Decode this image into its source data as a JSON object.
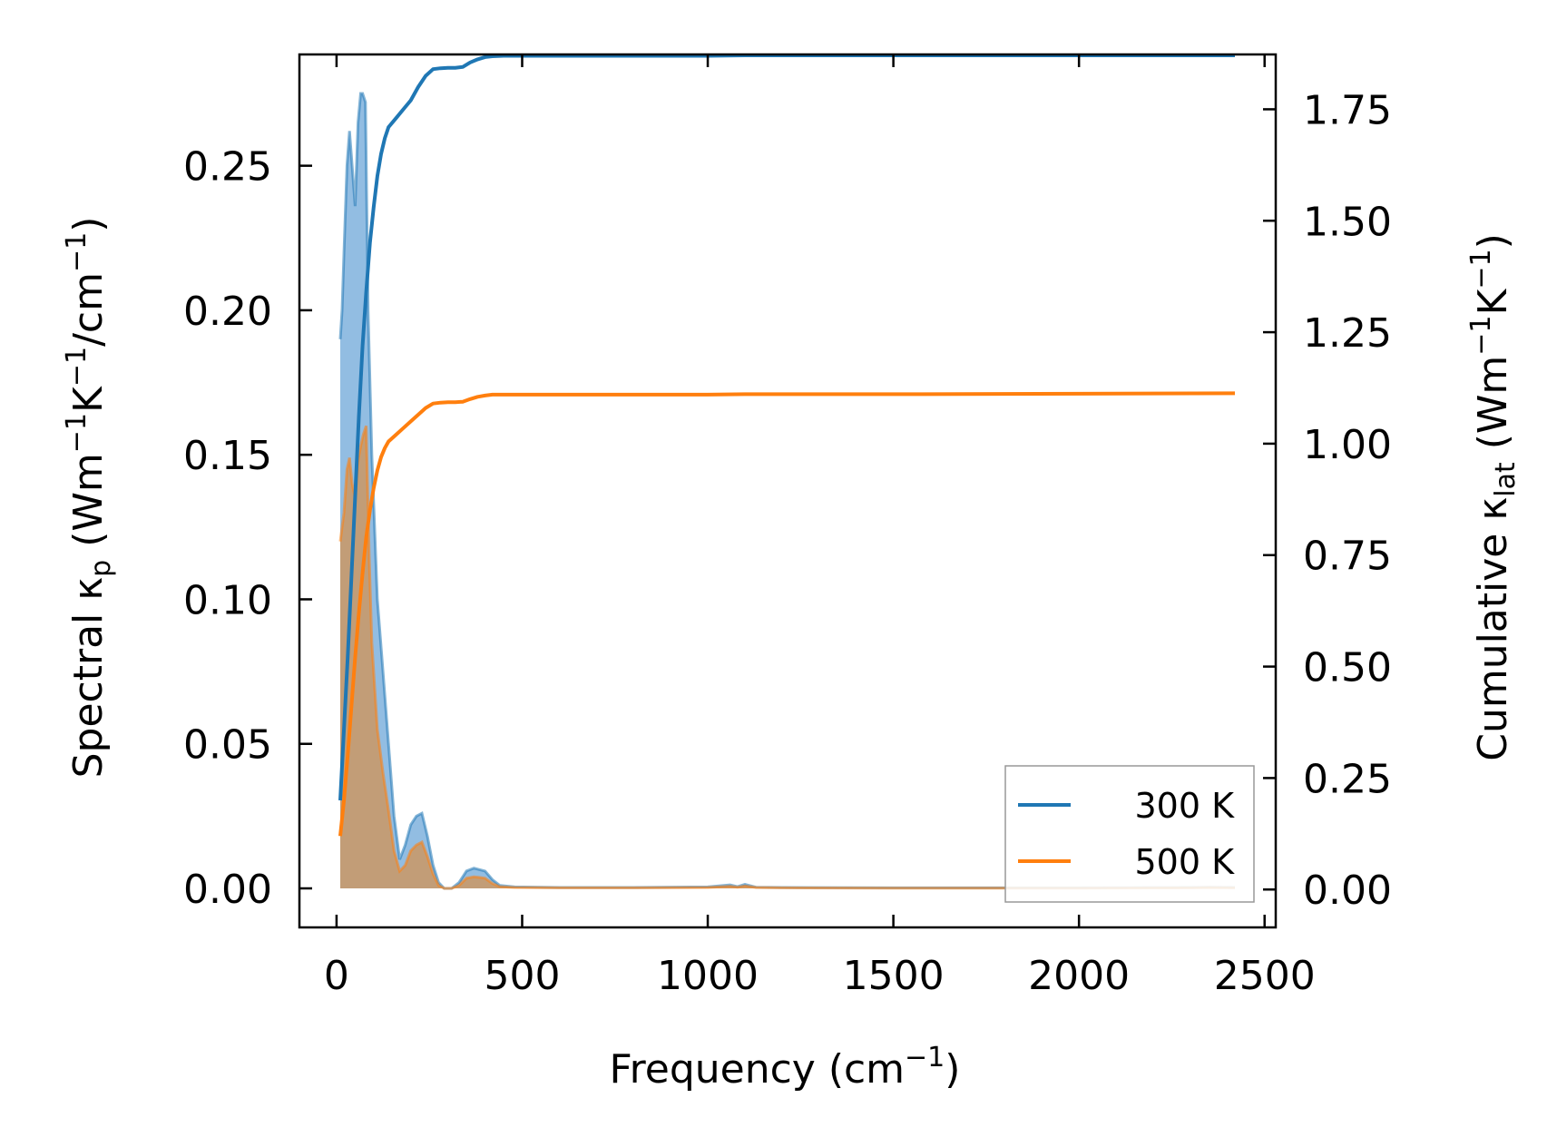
{
  "chart_data": {
    "type": "line",
    "xlabel": {
      "main": "Frequency (cm",
      "sup": "−1",
      "tail": ")"
    },
    "ylabel_left": {
      "a": "Spectral κ",
      "sub": "p",
      "b": " (Wm",
      "sup1": "−1",
      "c": "K",
      "sup2": "−1",
      "d": "/cm",
      "sup3": "−1",
      "e": ")"
    },
    "ylabel_right": {
      "a": "Cumulative κ",
      "sub": "lat",
      "b": " (Wm",
      "sup1": "−1",
      "c": "K",
      "sup2": "−1",
      "e": ")"
    },
    "xlim": [
      -100,
      2530
    ],
    "ylim_left": [
      -0.0135,
      0.2885
    ],
    "ylim_right": [
      -0.085,
      1.873
    ],
    "x_ticks": [
      0,
      500,
      1000,
      1500,
      2000,
      2500
    ],
    "x_tick_labels": [
      "0",
      "500",
      "1000",
      "1500",
      "2000",
      "2500"
    ],
    "y_left_ticks": [
      0.0,
      0.05,
      0.1,
      0.15,
      0.2,
      0.25
    ],
    "y_left_tick_labels": [
      "0.00",
      "0.05",
      "0.10",
      "0.15",
      "0.20",
      "0.25"
    ],
    "y_right_ticks": [
      0.0,
      0.25,
      0.5,
      0.75,
      1.0,
      1.25,
      1.5,
      1.75
    ],
    "y_right_tick_labels": [
      "0.00",
      "0.25",
      "0.50",
      "0.75",
      "1.00",
      "1.25",
      "1.50",
      "1.75"
    ],
    "grid": false,
    "legend_position": "lower-right",
    "colors": {
      "s300": "#1f77b4",
      "s500": "#ff7f0e",
      "fill300": "#7fb2dd",
      "fill500": "#c8996c"
    },
    "series": [
      {
        "name": "300 K",
        "spectral_x": [
          10,
          15,
          20,
          28,
          35,
          42,
          50,
          58,
          65,
          70,
          78,
          85,
          95,
          110,
          125,
          140,
          155,
          170,
          185,
          200,
          215,
          230,
          245,
          260,
          275,
          290,
          310,
          330,
          350,
          370,
          385,
          400,
          420,
          440,
          480,
          600,
          800,
          1000,
          1060,
          1080,
          1100,
          1130,
          1200,
          1500,
          2000,
          2300,
          2350,
          2420
        ],
        "spectral_y": [
          0.19,
          0.2,
          0.22,
          0.25,
          0.262,
          0.25,
          0.236,
          0.265,
          0.275,
          0.275,
          0.272,
          0.2,
          0.15,
          0.1,
          0.075,
          0.05,
          0.025,
          0.01,
          0.015,
          0.022,
          0.025,
          0.026,
          0.018,
          0.008,
          0.002,
          0.0,
          0.0,
          0.002,
          0.006,
          0.007,
          0.0065,
          0.006,
          0.003,
          0.001,
          0.0005,
          0.0003,
          0.0003,
          0.0005,
          0.0012,
          0.0006,
          0.0014,
          0.0004,
          0.0003,
          0.0002,
          0.0002,
          0.0003,
          0.0004,
          0.0003
        ],
        "cumulative_x": [
          10,
          20,
          30,
          40,
          50,
          60,
          70,
          80,
          90,
          100,
          110,
          120,
          130,
          140,
          160,
          180,
          200,
          220,
          240,
          260,
          280,
          300,
          320,
          340,
          360,
          380,
          400,
          420,
          450,
          600,
          1000,
          1100,
          1500,
          2000,
          2420
        ],
        "cumulative_y": [
          0.2,
          0.36,
          0.52,
          0.7,
          0.88,
          1.06,
          1.22,
          1.34,
          1.45,
          1.53,
          1.6,
          1.65,
          1.685,
          1.71,
          1.73,
          1.75,
          1.77,
          1.8,
          1.825,
          1.84,
          1.842,
          1.843,
          1.843,
          1.845,
          1.855,
          1.862,
          1.867,
          1.869,
          1.87,
          1.87,
          1.87,
          1.871,
          1.871,
          1.871,
          1.871
        ]
      },
      {
        "name": "500 K",
        "spectral_x": [
          10,
          15,
          20,
          28,
          35,
          42,
          50,
          58,
          65,
          72,
          80,
          88,
          95,
          110,
          125,
          140,
          155,
          170,
          185,
          200,
          215,
          230,
          245,
          260,
          275,
          290,
          310,
          330,
          350,
          370,
          385,
          400,
          420,
          440,
          480,
          600,
          800,
          1000,
          1060,
          1080,
          1100,
          1130,
          1200,
          1500,
          2000,
          2300,
          2350,
          2420
        ],
        "spectral_y": [
          0.12,
          0.125,
          0.13,
          0.145,
          0.149,
          0.14,
          0.135,
          0.148,
          0.153,
          0.157,
          0.16,
          0.115,
          0.085,
          0.055,
          0.04,
          0.027,
          0.013,
          0.006,
          0.008,
          0.013,
          0.015,
          0.016,
          0.011,
          0.005,
          0.001,
          0.0,
          0.0,
          0.001,
          0.0035,
          0.004,
          0.0038,
          0.0035,
          0.0017,
          0.0006,
          0.0003,
          0.0002,
          0.0002,
          0.0003,
          0.0007,
          0.0004,
          0.0008,
          0.0003,
          0.0002,
          0.0001,
          0.0001,
          0.0002,
          0.0003,
          0.0002
        ],
        "cumulative_x": [
          10,
          20,
          30,
          40,
          50,
          60,
          70,
          80,
          90,
          100,
          110,
          120,
          130,
          140,
          160,
          180,
          200,
          220,
          240,
          260,
          280,
          300,
          320,
          340,
          360,
          380,
          400,
          420,
          450,
          600,
          1000,
          1100,
          1500,
          2000,
          2420
        ],
        "cumulative_y": [
          0.12,
          0.2,
          0.3,
          0.41,
          0.52,
          0.62,
          0.71,
          0.79,
          0.85,
          0.9,
          0.94,
          0.97,
          0.99,
          1.005,
          1.02,
          1.035,
          1.05,
          1.065,
          1.08,
          1.09,
          1.092,
          1.093,
          1.093,
          1.094,
          1.1,
          1.105,
          1.108,
          1.11,
          1.11,
          1.11,
          1.11,
          1.111,
          1.111,
          1.112,
          1.113
        ]
      }
    ]
  }
}
